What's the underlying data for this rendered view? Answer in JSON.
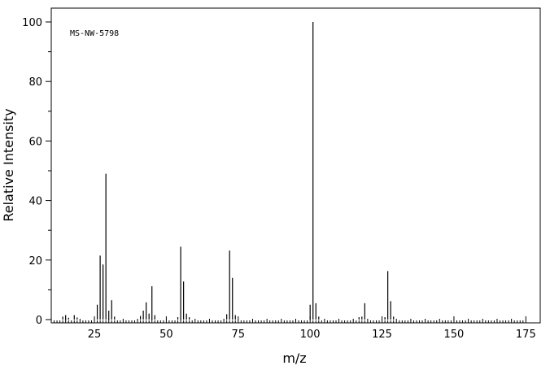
{
  "chart_data": {
    "type": "bar",
    "title": "",
    "annotation": "MS-NW-5798",
    "xlabel": "m/z",
    "ylabel": "Relative Intensity",
    "xlim": [
      10,
      180
    ],
    "ylim": [
      0,
      105
    ],
    "x_ticks": [
      25,
      50,
      75,
      100,
      125,
      150,
      175
    ],
    "y_ticks": [
      0,
      20,
      40,
      60,
      80,
      100
    ],
    "x_minor_step": 1,
    "y_minor_step": 10,
    "grid": false,
    "bar_color": "#000000",
    "peaks": [
      {
        "mz": 14,
        "intensity": 1.0
      },
      {
        "mz": 15,
        "intensity": 1.5
      },
      {
        "mz": 16,
        "intensity": 0.6
      },
      {
        "mz": 18,
        "intensity": 1.5
      },
      {
        "mz": 19,
        "intensity": 0.7
      },
      {
        "mz": 26,
        "intensity": 5.0
      },
      {
        "mz": 27,
        "intensity": 21.5
      },
      {
        "mz": 28,
        "intensity": 18.5
      },
      {
        "mz": 29,
        "intensity": 49.0
      },
      {
        "mz": 30,
        "intensity": 3.0
      },
      {
        "mz": 31,
        "intensity": 6.5
      },
      {
        "mz": 32,
        "intensity": 1.0
      },
      {
        "mz": 41,
        "intensity": 1.2
      },
      {
        "mz": 42,
        "intensity": 3.0
      },
      {
        "mz": 43,
        "intensity": 5.8
      },
      {
        "mz": 44,
        "intensity": 2.0
      },
      {
        "mz": 45,
        "intensity": 11.2
      },
      {
        "mz": 46,
        "intensity": 1.5
      },
      {
        "mz": 54,
        "intensity": 0.8
      },
      {
        "mz": 55,
        "intensity": 24.5
      },
      {
        "mz": 56,
        "intensity": 12.8
      },
      {
        "mz": 57,
        "intensity": 2.0
      },
      {
        "mz": 58,
        "intensity": 0.8
      },
      {
        "mz": 71,
        "intensity": 1.8
      },
      {
        "mz": 72,
        "intensity": 23.2
      },
      {
        "mz": 73,
        "intensity": 14.0
      },
      {
        "mz": 74,
        "intensity": 1.5
      },
      {
        "mz": 100,
        "intensity": 5.0
      },
      {
        "mz": 101,
        "intensity": 100.0
      },
      {
        "mz": 102,
        "intensity": 5.5
      },
      {
        "mz": 103,
        "intensity": 1.0
      },
      {
        "mz": 117,
        "intensity": 0.8
      },
      {
        "mz": 118,
        "intensity": 1.0
      },
      {
        "mz": 119,
        "intensity": 5.5
      },
      {
        "mz": 126,
        "intensity": 0.8
      },
      {
        "mz": 127,
        "intensity": 16.3
      },
      {
        "mz": 128,
        "intensity": 6.2
      },
      {
        "mz": 129,
        "intensity": 1.0
      }
    ]
  }
}
